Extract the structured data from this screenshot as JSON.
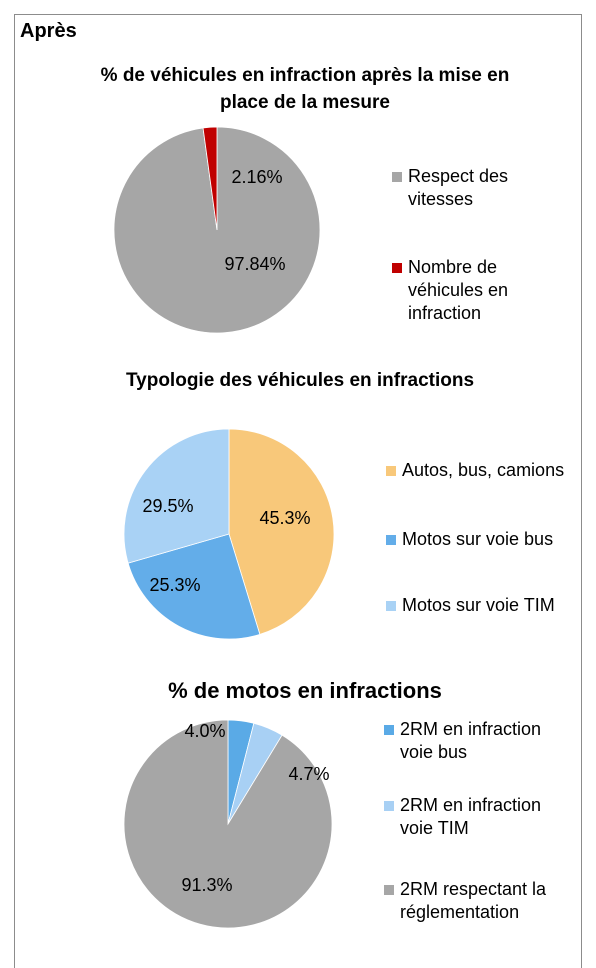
{
  "header": {
    "title": "Après"
  },
  "chart_data": [
    {
      "type": "pie",
      "title": "% de véhicules en infraction après la mise en place de la mesure",
      "categories": [
        "Respect des vitesses",
        "Nombre de véhicules en infraction"
      ],
      "values": [
        97.84,
        2.16
      ],
      "value_labels": [
        "97.84%",
        "2.16%"
      ],
      "colors": [
        "#a6a6a6",
        "#c00000"
      ]
    },
    {
      "type": "pie",
      "title": "Typologie des véhicules en infractions",
      "categories": [
        "Autos, bus, camions",
        "Motos sur voie bus",
        "Motos sur voie TIM"
      ],
      "values": [
        45.3,
        25.3,
        29.5
      ],
      "value_labels": [
        "45.3%",
        "25.3%",
        "29.5%"
      ],
      "colors": [
        "#f8c87a",
        "#63ade9",
        "#a9d2f5"
      ]
    },
    {
      "type": "pie",
      "title": "% de motos en infractions",
      "categories": [
        "2RM en infraction voie bus",
        "2RM en infraction voie TIM",
        "2RM respectant la réglementation"
      ],
      "values": [
        4.0,
        4.7,
        91.3
      ],
      "value_labels": [
        "4.0%",
        "4.7%",
        "91.3%"
      ],
      "colors": [
        "#5aaae6",
        "#a8d0f4",
        "#a6a6a6"
      ]
    }
  ]
}
